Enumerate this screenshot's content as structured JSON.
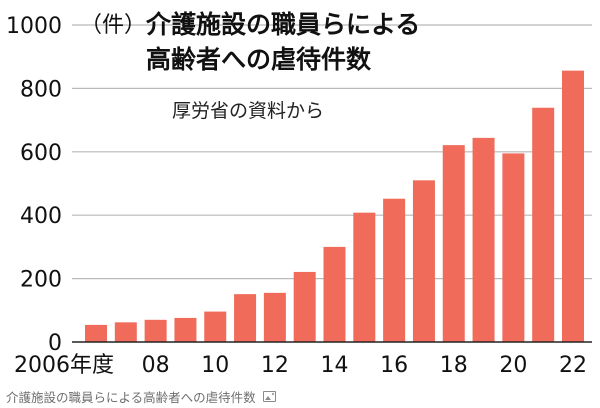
{
  "chart_data": {
    "type": "bar",
    "title_lines": [
      "介護施設の職員らによる",
      "高齢者への虐待件数"
    ],
    "unit_label": "（件）",
    "source": "厚労省の資料から",
    "categories": [
      "2006",
      "07",
      "08",
      "09",
      "10",
      "11",
      "12",
      "13",
      "14",
      "15",
      "16",
      "17",
      "18",
      "19",
      "20",
      "21",
      "22"
    ],
    "values": [
      54,
      62,
      70,
      76,
      96,
      151,
      155,
      221,
      300,
      408,
      452,
      510,
      621,
      644,
      595,
      739,
      856
    ],
    "x_tick_labels": [
      "2006年度",
      "08",
      "10",
      "12",
      "14",
      "16",
      "18",
      "20",
      "22"
    ],
    "y_ticks": [
      "0",
      "200",
      "400",
      "600",
      "800",
      "1000"
    ],
    "ylim": [
      0,
      1000
    ],
    "grid": true,
    "bar_color": "#f06b5a"
  },
  "caption": {
    "text": "介護施設の職員らによる高齢者への虐待件数",
    "icon": "image-icon"
  }
}
